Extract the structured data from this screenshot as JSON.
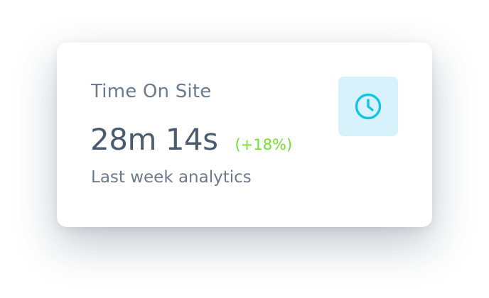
{
  "card": {
    "title": "Time On Site",
    "value": "28m 14s",
    "change": "(+18%)",
    "subtitle": "Last week analytics",
    "icon": "clock-icon"
  },
  "colors": {
    "title_text": "#6b7a8e",
    "value_text": "#4b5b70",
    "positive_change": "#72e128",
    "icon_background": "#d8f2fb",
    "icon_stroke": "#16c1e7"
  }
}
